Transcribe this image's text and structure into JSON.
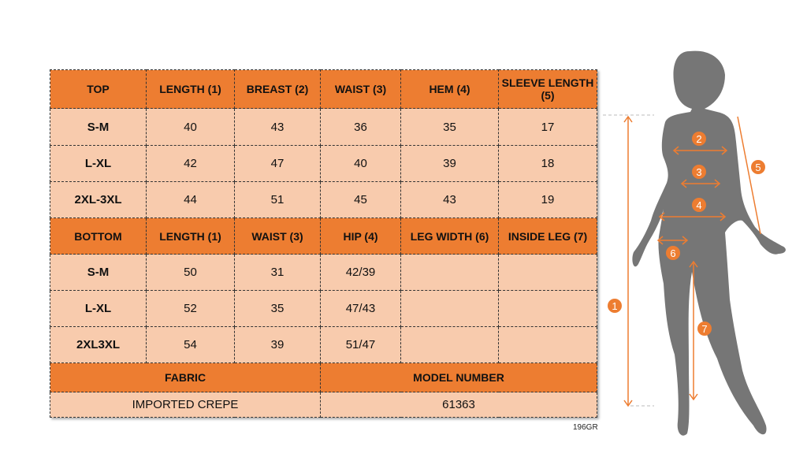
{
  "top": {
    "headers": [
      "TOP",
      "LENGTH (1)",
      "BREAST (2)",
      "WAIST (3)",
      "HEM (4)",
      "SLEEVE LENGTH (5)"
    ],
    "rows": [
      [
        "S-M",
        "40",
        "43",
        "36",
        "35",
        "17"
      ],
      [
        "L-XL",
        "42",
        "47",
        "40",
        "39",
        "18"
      ],
      [
        "2XL-3XL",
        "44",
        "51",
        "45",
        "43",
        "19"
      ]
    ]
  },
  "bottom": {
    "headers": [
      "BOTTOM",
      "LENGTH (1)",
      "WAIST (3)",
      "HIP (4)",
      "LEG WIDTH (6)",
      "INSIDE LEG (7)"
    ],
    "rows": [
      [
        "S-M",
        "50",
        "31",
        "42/39",
        "",
        ""
      ],
      [
        "L-XL",
        "52",
        "35",
        "47/43",
        "",
        ""
      ],
      [
        "2XL3XL",
        "54",
        "39",
        "51/47",
        "",
        ""
      ]
    ]
  },
  "fabric": {
    "label": "FABRIC",
    "value": "IMPORTED CREPE"
  },
  "model": {
    "label": "MODEL NUMBER",
    "value": "61363"
  },
  "code": "196GR",
  "figure": {
    "markers": [
      "1",
      "2",
      "3",
      "4",
      "5",
      "6",
      "7"
    ]
  },
  "colors": {
    "header": "#ED7D31",
    "body": "#F8CBAD",
    "silhouette": "#767676"
  }
}
